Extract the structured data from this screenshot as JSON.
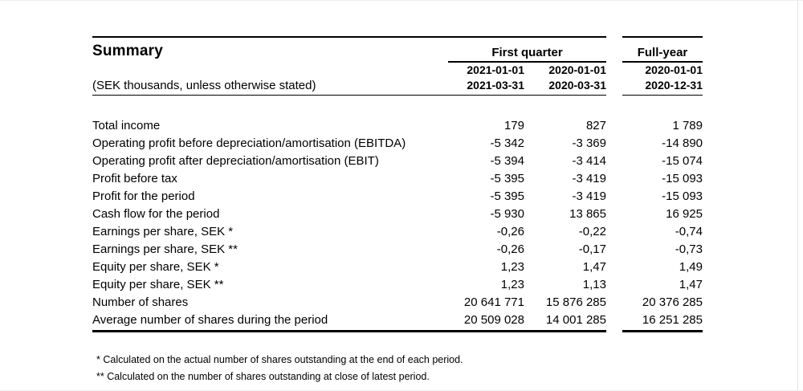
{
  "report": {
    "title": "Summary",
    "unit_note": "(SEK thousands, unless otherwise stated)",
    "groups": {
      "first_quarter": "First quarter",
      "full_year": "Full-year"
    },
    "periods": [
      {
        "start": "2021-01-01",
        "end": "2021-03-31"
      },
      {
        "start": "2020-01-01",
        "end": "2020-03-31"
      },
      {
        "start": "2020-01-01",
        "end": "2020-12-31"
      }
    ],
    "rows": [
      {
        "label": "Total income",
        "values": [
          "179",
          "827",
          "1 789"
        ]
      },
      {
        "label": "Operating profit before depreciation/amortisation (EBITDA)",
        "values": [
          "-5 342",
          "-3 369",
          "-14 890"
        ]
      },
      {
        "label": "Operating profit after depreciation/amortisation (EBIT)",
        "values": [
          "-5 394",
          "-3 414",
          "-15 074"
        ]
      },
      {
        "label": "Profit before tax",
        "values": [
          "-5 395",
          "-3 419",
          "-15 093"
        ]
      },
      {
        "label": "Profit for the period",
        "values": [
          "-5 395",
          "-3 419",
          "-15 093"
        ]
      },
      {
        "label": "Cash flow for the period",
        "values": [
          "-5 930",
          "13 865",
          "16 925"
        ]
      },
      {
        "label": "Earnings per share, SEK *",
        "values": [
          "-0,26",
          "-0,22",
          "-0,74"
        ]
      },
      {
        "label": "Earnings per share, SEK **",
        "values": [
          "-0,26",
          "-0,17",
          "-0,73"
        ]
      },
      {
        "label": "Equity per share, SEK *",
        "values": [
          "1,23",
          "1,47",
          "1,49"
        ]
      },
      {
        "label": "Equity per share, SEK **",
        "values": [
          "1,23",
          "1,13",
          "1,47"
        ]
      },
      {
        "label": "Number of shares",
        "values": [
          "20 641 771",
          "15 876 285",
          "20 376 285"
        ]
      },
      {
        "label": "Average number of shares during the period",
        "values": [
          "20 509 028",
          "14 001 285",
          "16 251 285"
        ]
      }
    ],
    "footnotes": [
      "* Calculated on the actual number of shares outstanding at the end of each period.",
      "** Calculated on the number of shares outstanding at close of latest period."
    ]
  }
}
